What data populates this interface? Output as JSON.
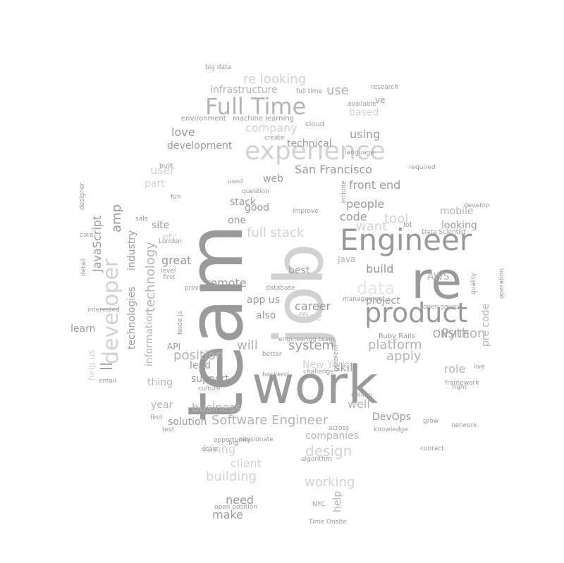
{
  "colors": {
    "background": "#ffffff",
    "dark": "#9a9a9a",
    "mid": "#b4b4b4",
    "light": "#d2d2d2",
    "faint": "#e6e6e6"
  },
  "words": [
    {
      "text": "team",
      "tone": "dark"
    },
    {
      "text": "job",
      "tone": "light"
    },
    {
      "text": "work",
      "tone": "dark"
    },
    {
      "text": "re",
      "tone": "dark"
    },
    {
      "text": "Engineer",
      "tone": "dark"
    },
    {
      "text": "product",
      "tone": "dark"
    },
    {
      "text": "experience",
      "tone": "light"
    },
    {
      "text": "Full Time",
      "tone": "mid"
    },
    {
      "text": "developer",
      "tone": "light"
    },
    {
      "text": "San Francisco",
      "tone": "dark"
    },
    {
      "text": "front end",
      "tone": "dark"
    },
    {
      "text": "company",
      "tone": "light"
    },
    {
      "text": "infrastructure",
      "tone": "mid"
    },
    {
      "text": "re looking",
      "tone": "light"
    },
    {
      "text": "Software Engineer",
      "tone": "mid"
    },
    {
      "text": "platform",
      "tone": "mid"
    },
    {
      "text": "people",
      "tone": "dark"
    },
    {
      "text": "full stack",
      "tone": "light"
    },
    {
      "text": "code",
      "tone": "dark"
    },
    {
      "text": "tool",
      "tone": "light"
    },
    {
      "text": "Python",
      "tone": "mid"
    },
    {
      "text": "mobile",
      "tone": "mid"
    },
    {
      "text": "looking",
      "tone": "dark"
    },
    {
      "text": "build",
      "tone": "dark"
    },
    {
      "text": "best",
      "tone": "dark"
    },
    {
      "text": "career",
      "tone": "dark"
    },
    {
      "text": "system",
      "tone": "dark"
    },
    {
      "text": "will",
      "tone": "mid"
    },
    {
      "text": "also",
      "tone": "dark"
    },
    {
      "text": "app us",
      "tone": "dark"
    },
    {
      "text": "remote",
      "tone": "dark"
    },
    {
      "text": "great",
      "tone": "dark"
    },
    {
      "text": "position",
      "tone": "mid"
    },
    {
      "text": "lead",
      "tone": "dark"
    },
    {
      "text": "support",
      "tone": "dark"
    },
    {
      "text": "business",
      "tone": "mid"
    },
    {
      "text": "solution",
      "tone": "dark"
    },
    {
      "text": "hiring",
      "tone": "light"
    },
    {
      "text": "client",
      "tone": "light"
    },
    {
      "text": "building",
      "tone": "light"
    },
    {
      "text": "need",
      "tone": "dark"
    },
    {
      "text": "make",
      "tone": "dark"
    },
    {
      "text": "working",
      "tone": "light"
    },
    {
      "text": "companies",
      "tone": "mid"
    },
    {
      "text": "design",
      "tone": "light"
    },
    {
      "text": "help",
      "tone": "mid"
    },
    {
      "text": "well",
      "tone": "mid"
    },
    {
      "text": "DevOps",
      "tone": "dark"
    },
    {
      "text": "skill",
      "tone": "dark"
    },
    {
      "text": "apply",
      "tone": "mid"
    },
    {
      "text": "role",
      "tone": "mid"
    },
    {
      "text": "ONSITE",
      "tone": "dark"
    },
    {
      "text": "project",
      "tone": "dark"
    },
    {
      "text": "AWS",
      "tone": "mid"
    },
    {
      "text": "pre code",
      "tone": "mid"
    },
    {
      "text": "office",
      "tone": "light"
    },
    {
      "text": "New York",
      "tone": "light"
    },
    {
      "text": "data",
      "tone": "faint"
    },
    {
      "text": "using",
      "tone": "dark"
    },
    {
      "text": "based",
      "tone": "light"
    },
    {
      "text": "technical",
      "tone": "dark"
    },
    {
      "text": "use",
      "tone": "mid"
    },
    {
      "text": "love",
      "tone": "dark"
    },
    {
      "text": "development",
      "tone": "dark"
    },
    {
      "text": "user",
      "tone": "light"
    },
    {
      "text": "part",
      "tone": "light"
    },
    {
      "text": "site",
      "tone": "dark"
    },
    {
      "text": "amp",
      "tone": "dark"
    },
    {
      "text": "JavaScript",
      "tone": "dark"
    },
    {
      "text": "industry",
      "tone": "dark"
    },
    {
      "text": "technologies",
      "tone": "dark"
    },
    {
      "text": "information",
      "tone": "mid"
    },
    {
      "text": "technology",
      "tone": "mid"
    },
    {
      "text": "learn",
      "tone": "dark"
    },
    {
      "text": "ll",
      "tone": "dark"
    },
    {
      "text": "API",
      "tone": "dark"
    },
    {
      "text": "thing",
      "tone": "mid"
    },
    {
      "text": "year",
      "tone": "mid"
    },
    {
      "text": "Ruby Rails",
      "tone": "dark"
    },
    {
      "text": "Java",
      "tone": "mid"
    },
    {
      "text": "web",
      "tone": "dark"
    },
    {
      "text": "one",
      "tone": "dark"
    },
    {
      "text": "good",
      "tone": "dark"
    },
    {
      "text": "want",
      "tone": "light"
    },
    {
      "text": "lot",
      "tone": "dark"
    },
    {
      "text": "machine learning",
      "tone": "dark"
    },
    {
      "text": "environment",
      "tone": "dark"
    },
    {
      "text": "create",
      "tone": "dark"
    },
    {
      "text": "cloud",
      "tone": "dark"
    },
    {
      "text": "ve",
      "tone": "dark"
    },
    {
      "text": "Time Onsite",
      "tone": "dark"
    },
    {
      "text": "passionate",
      "tone": "dark"
    },
    {
      "text": "scale",
      "tone": "dark"
    },
    {
      "text": "Node js",
      "tone": "dark"
    },
    {
      "text": "better",
      "tone": "dark"
    },
    {
      "text": "backend",
      "tone": "dark"
    },
    {
      "text": "email",
      "tone": "dark"
    },
    {
      "text": "sale",
      "tone": "dark"
    },
    {
      "text": "designer",
      "tone": "dark"
    },
    {
      "text": "first",
      "tone": "dark"
    },
    {
      "text": "level",
      "tone": "dark"
    },
    {
      "text": "provide",
      "tone": "dark"
    },
    {
      "text": "London",
      "tone": "dark"
    },
    {
      "text": "database",
      "tone": "dark"
    },
    {
      "text": "improve",
      "tone": "dark"
    },
    {
      "text": "question",
      "tone": "dark"
    },
    {
      "text": "management",
      "tone": "dark"
    },
    {
      "text": "Data Scientist",
      "tone": "dark"
    },
    {
      "text": "open source",
      "tone": "dark"
    },
    {
      "text": "develop",
      "tone": "dark"
    },
    {
      "text": "live",
      "tone": "dark"
    },
    {
      "text": "right",
      "tone": "dark"
    },
    {
      "text": "grow",
      "tone": "dark"
    },
    {
      "text": "knowledge",
      "tone": "dark"
    },
    {
      "text": "million",
      "tone": "dark"
    },
    {
      "text": "problem",
      "tone": "dark"
    },
    {
      "text": "challenge",
      "tone": "dark"
    },
    {
      "text": "culture",
      "tone": "dark"
    },
    {
      "text": "opportunity",
      "tone": "dark"
    },
    {
      "text": "big",
      "tone": "dark"
    },
    {
      "text": "find",
      "tone": "dark"
    },
    {
      "text": "test",
      "tone": "dark"
    },
    {
      "text": "algorithm",
      "tone": "dark"
    },
    {
      "text": "NYC",
      "tone": "dark"
    },
    {
      "text": "contact",
      "tone": "dark"
    },
    {
      "text": "network",
      "tone": "dark"
    },
    {
      "text": "framework",
      "tone": "dark"
    },
    {
      "text": "include",
      "tone": "dark"
    },
    {
      "text": "required",
      "tone": "dark"
    },
    {
      "text": "language",
      "tone": "dark"
    },
    {
      "text": "research",
      "tone": "dark"
    },
    {
      "text": "available",
      "tone": "dark"
    },
    {
      "text": "big data",
      "tone": "dark"
    },
    {
      "text": "built",
      "tone": "dark"
    },
    {
      "text": "full time",
      "tone": "dark"
    },
    {
      "text": "open position",
      "tone": "dark"
    },
    {
      "text": "help us",
      "tone": "light"
    },
    {
      "text": "engineering team",
      "tone": "dark"
    },
    {
      "text": "etc",
      "tone": "light"
    },
    {
      "text": "stack",
      "tone": "dark"
    },
    {
      "text": "interested",
      "tone": "dark"
    },
    {
      "text": "detail",
      "tone": "dark"
    },
    {
      "text": "operation",
      "tone": "dark"
    },
    {
      "text": "quality",
      "tone": "dark"
    },
    {
      "text": "across",
      "tone": "dark"
    },
    {
      "text": "core",
      "tone": "dark"
    },
    {
      "text": "used",
      "tone": "dark"
    },
    {
      "text": "fun",
      "tone": "dark"
    }
  ]
}
